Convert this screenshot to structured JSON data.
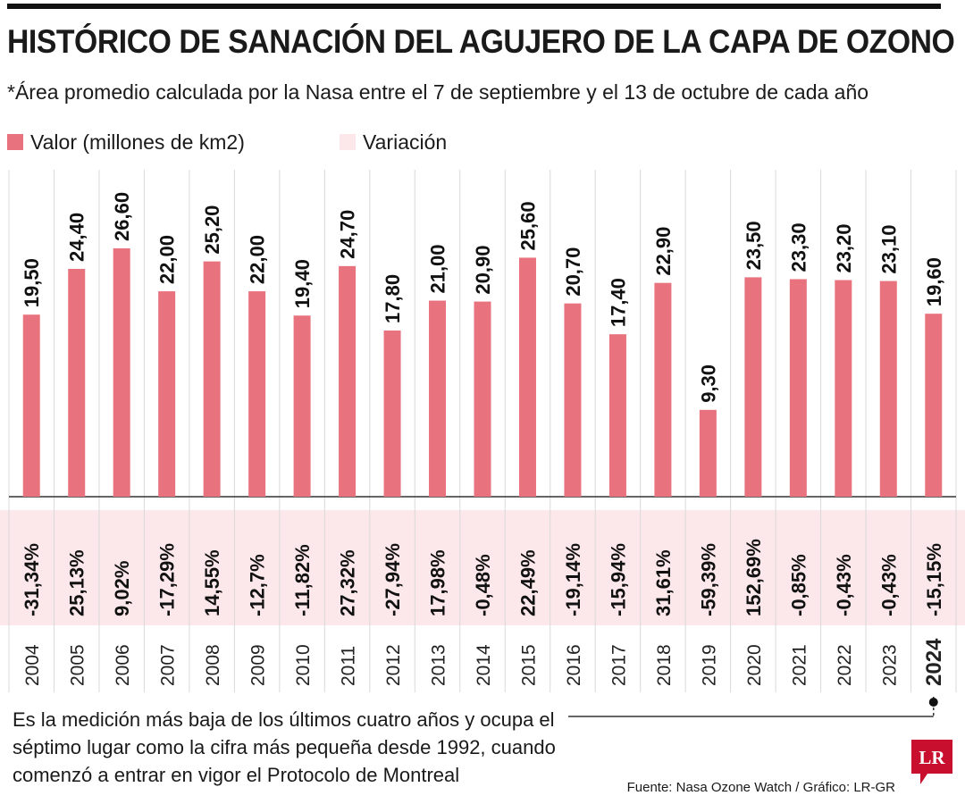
{
  "header": {
    "title": "HISTÓRICO DE SANACIÓN DEL AGUJERO DE LA CAPA DE OZONO",
    "subtitle": "*Área promedio calculada por la Nasa entre el 7 de septiembre y el 13 de octubre de cada año"
  },
  "legend": {
    "valor": "Valor (millones de km2)",
    "variacion": "Variación"
  },
  "chart_data": {
    "type": "bar",
    "categories": [
      "2004",
      "2005",
      "2006",
      "2007",
      "2008",
      "2009",
      "2010",
      "2011",
      "2012",
      "2013",
      "2014",
      "2015",
      "2016",
      "2017",
      "2018",
      "2019",
      "2020",
      "2021",
      "2022",
      "2023",
      "2024"
    ],
    "series": [
      {
        "name": "Valor (millones de km2)",
        "values": [
          19.5,
          24.4,
          26.6,
          22.0,
          25.2,
          22.0,
          19.4,
          24.7,
          17.8,
          21.0,
          20.9,
          25.6,
          20.7,
          17.4,
          22.9,
          9.3,
          23.5,
          23.3,
          23.2,
          23.1,
          19.6
        ],
        "labels": [
          "19,50",
          "24,40",
          "26,60",
          "22,00",
          "25,20",
          "22,00",
          "19,40",
          "24,70",
          "17,80",
          "21,00",
          "20,90",
          "25,60",
          "20,70",
          "17,40",
          "22,90",
          "9,30",
          "23,50",
          "23,30",
          "23,20",
          "23,10",
          "19,60"
        ]
      },
      {
        "name": "Variación",
        "labels": [
          "-31,34%",
          "25,13%",
          "9,02%",
          "-17,29%",
          "14,55%",
          "-12,7%",
          "-11,82%",
          "27,32%",
          "-27,94%",
          "17,98%",
          "-0,48%",
          "22,49%",
          "-19,14%",
          "-15,94%",
          "31,61%",
          "-59,39%",
          "152,69%",
          "-0,85%",
          "-0,43%",
          "-0,43%",
          "-15,15%"
        ]
      }
    ],
    "ylim": [
      0,
      30
    ],
    "highlight_category": "2024",
    "colors": {
      "bar": "#e8737f",
      "variation_band": "#fce8ea",
      "grid": "#d9d9d9"
    }
  },
  "footer": {
    "note": "Es la medición más baja de los últimos cuatro años y ocupa el séptimo lugar como la cifra más pequeña desde 1992, cuando comenzó a entrar en vigor el Protocolo de Montreal",
    "source": "Fuente: Nasa Ozone Watch / Gráfico: LR-GR",
    "logo_text": "LR"
  }
}
